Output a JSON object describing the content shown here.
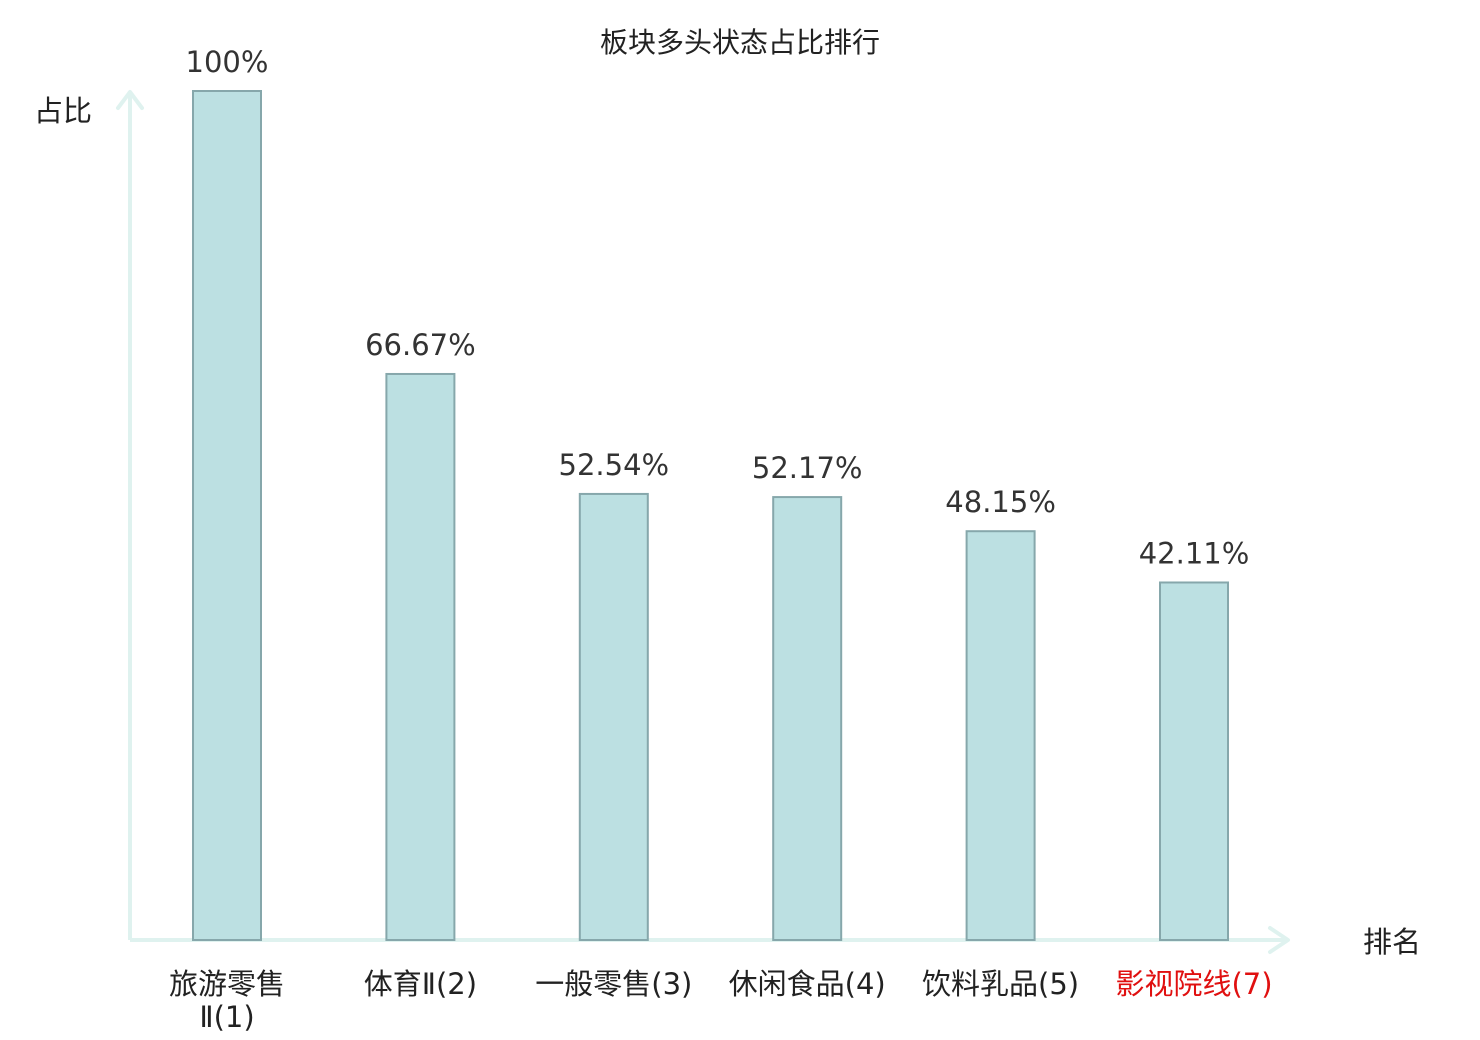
{
  "chart_data": {
    "type": "bar",
    "title": "板块多头状态占比排行",
    "xlabel": "排名",
    "ylabel": "占比",
    "ylim": [
      0,
      100
    ],
    "grid": false,
    "categories": [
      [
        "旅游零售",
        "Ⅱ(1)"
      ],
      [
        "体育Ⅱ(2)"
      ],
      [
        "一般零售(3)"
      ],
      [
        "休闲食品(4)"
      ],
      [
        "饮料乳品(5)"
      ],
      [
        "影视院线(7)"
      ]
    ],
    "values": [
      100,
      66.67,
      52.54,
      52.17,
      48.15,
      42.11
    ],
    "value_labels": [
      "100%",
      "66.67%",
      "52.54%",
      "52.17%",
      "48.15%",
      "42.11%"
    ],
    "category_colors": [
      "#222222",
      "#222222",
      "#222222",
      "#222222",
      "#222222",
      "#e01010"
    ]
  },
  "colors": {
    "bar_fill": "#bce0e2",
    "bar_stroke": "#86a7ab",
    "axis": "#dff2ef",
    "highlight": "#e01010"
  }
}
